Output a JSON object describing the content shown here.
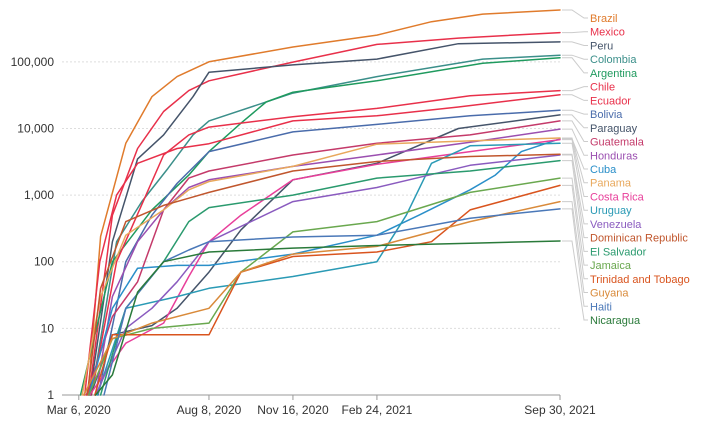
{
  "chart_data": {
    "type": "line",
    "title": "",
    "xlabel": "",
    "ylabel": "",
    "y_scale": "log",
    "ylim": [
      1,
      600000
    ],
    "xlim": [
      "2020-02-15",
      "2021-09-30"
    ],
    "grid": "horizontal dotted",
    "legend_placement": "right",
    "y_ticks": [
      {
        "value": 1,
        "label": "1"
      },
      {
        "value": 10,
        "label": "10"
      },
      {
        "value": 100,
        "label": "100"
      },
      {
        "value": 1000,
        "label": "1,000"
      },
      {
        "value": 10000,
        "label": "10,000"
      },
      {
        "value": 100000,
        "label": "100,000"
      }
    ],
    "x_ticks": [
      {
        "value": "2020-03-06",
        "label": "Mar 6, 2020"
      },
      {
        "value": "2020-08-08",
        "label": "Aug 8, 2020"
      },
      {
        "value": "2020-11-16",
        "label": "Nov 16, 2020"
      },
      {
        "value": "2021-02-24",
        "label": "Feb 24, 2021"
      },
      {
        "value": "2021-09-30",
        "label": "Sep 30, 2021"
      }
    ],
    "series": [
      {
        "name": "Brazil",
        "color": "#e07b2c",
        "points": [
          [
            "2020-03-17",
            1
          ],
          [
            "2020-04-01",
            240
          ],
          [
            "2020-05-01",
            6000
          ],
          [
            "2020-06-01",
            30000
          ],
          [
            "2020-07-01",
            60000
          ],
          [
            "2020-08-08",
            100000
          ],
          [
            "2020-11-16",
            167000
          ],
          [
            "2021-02-24",
            252000
          ],
          [
            "2021-04-30",
            400000
          ],
          [
            "2021-06-30",
            520000
          ],
          [
            "2021-09-30",
            600000
          ]
        ]
      },
      {
        "name": "Mexico",
        "color": "#e8304a",
        "points": [
          [
            "2020-03-18",
            1
          ],
          [
            "2020-04-15",
            500
          ],
          [
            "2020-05-15",
            5000
          ],
          [
            "2020-06-15",
            18000
          ],
          [
            "2020-07-15",
            37000
          ],
          [
            "2020-08-08",
            52000
          ],
          [
            "2020-11-16",
            99000
          ],
          [
            "2021-02-24",
            183000
          ],
          [
            "2021-06-01",
            227000
          ],
          [
            "2021-09-30",
            275000
          ]
        ]
      },
      {
        "name": "Peru",
        "color": "#45546a",
        "points": [
          [
            "2020-03-19",
            1
          ],
          [
            "2020-04-15",
            200
          ],
          [
            "2020-05-15",
            3500
          ],
          [
            "2020-06-15",
            8000
          ],
          [
            "2020-07-20",
            30000
          ],
          [
            "2020-08-08",
            70000
          ],
          [
            "2020-11-16",
            90000
          ],
          [
            "2021-02-24",
            110000
          ],
          [
            "2021-06-01",
            187000
          ],
          [
            "2021-09-30",
            199000
          ]
        ]
      },
      {
        "name": "Colombia",
        "color": "#3b8f8a",
        "points": [
          [
            "2020-03-21",
            1
          ],
          [
            "2020-04-20",
            200
          ],
          [
            "2020-05-20",
            800
          ],
          [
            "2020-06-20",
            2500
          ],
          [
            "2020-07-20",
            8000
          ],
          [
            "2020-08-08",
            13000
          ],
          [
            "2020-11-16",
            34000
          ],
          [
            "2021-02-24",
            60000
          ],
          [
            "2021-06-30",
            110000
          ],
          [
            "2021-09-30",
            126000
          ]
        ]
      },
      {
        "name": "Argentina",
        "color": "#1f9a5e",
        "points": [
          [
            "2020-03-08",
            1
          ],
          [
            "2020-04-15",
            100
          ],
          [
            "2020-06-01",
            600
          ],
          [
            "2020-07-15",
            2000
          ],
          [
            "2020-08-08",
            4500
          ],
          [
            "2020-09-15",
            12000
          ],
          [
            "2020-10-15",
            25000
          ],
          [
            "2020-11-16",
            35000
          ],
          [
            "2021-02-24",
            52000
          ],
          [
            "2021-06-30",
            95000
          ],
          [
            "2021-09-30",
            115000
          ]
        ]
      },
      {
        "name": "Chile",
        "color": "#e8304a",
        "points": [
          [
            "2020-03-21",
            1
          ],
          [
            "2020-04-20",
            100
          ],
          [
            "2020-05-25",
            1000
          ],
          [
            "2020-06-15",
            4000
          ],
          [
            "2020-07-15",
            8000
          ],
          [
            "2020-08-08",
            10500
          ],
          [
            "2020-11-16",
            15000
          ],
          [
            "2021-02-24",
            20000
          ],
          [
            "2021-06-15",
            31000
          ],
          [
            "2021-09-30",
            37000
          ]
        ]
      },
      {
        "name": "Ecuador",
        "color": "#e8304a",
        "points": [
          [
            "2020-03-13",
            1
          ],
          [
            "2020-03-31",
            100
          ],
          [
            "2020-04-20",
            1000
          ],
          [
            "2020-05-15",
            3000
          ],
          [
            "2020-07-01",
            5000
          ],
          [
            "2020-08-08",
            5900
          ],
          [
            "2020-11-16",
            13000
          ],
          [
            "2021-02-24",
            15500
          ],
          [
            "2021-06-01",
            21000
          ],
          [
            "2021-09-30",
            32000
          ]
        ]
      },
      {
        "name": "Bolivia",
        "color": "#4a6cab",
        "points": [
          [
            "2020-03-29",
            1
          ],
          [
            "2020-05-01",
            100
          ],
          [
            "2020-06-01",
            500
          ],
          [
            "2020-07-01",
            1500
          ],
          [
            "2020-08-08",
            4500
          ],
          [
            "2020-11-16",
            8900
          ],
          [
            "2021-02-24",
            11500
          ],
          [
            "2021-06-15",
            15500
          ],
          [
            "2021-09-30",
            18800
          ]
        ]
      },
      {
        "name": "Paraguay",
        "color": "#45546a",
        "points": [
          [
            "2020-03-20",
            1
          ],
          [
            "2020-04-15",
            8
          ],
          [
            "2020-06-01",
            11
          ],
          [
            "2020-07-01",
            20
          ],
          [
            "2020-08-08",
            70
          ],
          [
            "2020-09-15",
            300
          ],
          [
            "2020-11-16",
            1700
          ],
          [
            "2021-02-24",
            3000
          ],
          [
            "2021-06-01",
            10000
          ],
          [
            "2021-09-30",
            16000
          ]
        ]
      },
      {
        "name": "Guatemala",
        "color": "#c43a6a",
        "points": [
          [
            "2020-03-15",
            1
          ],
          [
            "2020-04-15",
            15
          ],
          [
            "2020-05-15",
            50
          ],
          [
            "2020-06-15",
            600
          ],
          [
            "2020-07-15",
            1800
          ],
          [
            "2020-08-08",
            2300
          ],
          [
            "2020-11-16",
            4000
          ],
          [
            "2021-02-24",
            6000
          ],
          [
            "2021-06-15",
            8000
          ],
          [
            "2021-09-30",
            13000
          ]
        ]
      },
      {
        "name": "Honduras",
        "color": "#9b4fb0",
        "points": [
          [
            "2020-03-26",
            1
          ],
          [
            "2020-04-15",
            30
          ],
          [
            "2020-05-15",
            200
          ],
          [
            "2020-06-15",
            600
          ],
          [
            "2020-07-15",
            1300
          ],
          [
            "2020-08-08",
            1700
          ],
          [
            "2020-11-16",
            2700
          ],
          [
            "2021-02-24",
            4000
          ],
          [
            "2021-06-15",
            6200
          ],
          [
            "2021-09-30",
            9800
          ]
        ]
      },
      {
        "name": "Cuba",
        "color": "#2a8fc9",
        "points": [
          [
            "2020-03-18",
            1
          ],
          [
            "2020-04-15",
            20
          ],
          [
            "2020-05-15",
            80
          ],
          [
            "2020-07-01",
            88
          ],
          [
            "2020-08-08",
            88
          ],
          [
            "2020-11-16",
            130
          ],
          [
            "2021-02-24",
            250
          ],
          [
            "2021-04-15",
            500
          ],
          [
            "2021-06-15",
            1200
          ],
          [
            "2021-07-15",
            2000
          ],
          [
            "2021-08-15",
            4500
          ],
          [
            "2021-09-30",
            7000
          ]
        ]
      },
      {
        "name": "Panama",
        "color": "#e8a85c",
        "points": [
          [
            "2020-03-10",
            1
          ],
          [
            "2020-04-01",
            30
          ],
          [
            "2020-05-01",
            250
          ],
          [
            "2020-06-15",
            600
          ],
          [
            "2020-07-15",
            1200
          ],
          [
            "2020-08-08",
            1600
          ],
          [
            "2020-11-16",
            2700
          ],
          [
            "2021-02-24",
            5800
          ],
          [
            "2021-06-15",
            6500
          ],
          [
            "2021-09-30",
            7200
          ]
        ]
      },
      {
        "name": "Costa Rica",
        "color": "#e83f9a",
        "points": [
          [
            "2020-03-19",
            1
          ],
          [
            "2020-05-01",
            6
          ],
          [
            "2020-06-15",
            12
          ],
          [
            "2020-07-15",
            60
          ],
          [
            "2020-08-08",
            200
          ],
          [
            "2020-09-15",
            500
          ],
          [
            "2020-11-16",
            1700
          ],
          [
            "2021-02-24",
            2900
          ],
          [
            "2021-06-15",
            4500
          ],
          [
            "2021-09-30",
            6800
          ]
        ]
      },
      {
        "name": "Uruguay",
        "color": "#2a9ab5",
        "points": [
          [
            "2020-03-28",
            1
          ],
          [
            "2020-05-01",
            20
          ],
          [
            "2020-07-01",
            30
          ],
          [
            "2020-08-08",
            40
          ],
          [
            "2020-11-16",
            60
          ],
          [
            "2021-02-24",
            100
          ],
          [
            "2021-03-31",
            500
          ],
          [
            "2021-04-30",
            3000
          ],
          [
            "2021-06-15",
            5500
          ],
          [
            "2021-09-30",
            6000
          ]
        ]
      },
      {
        "name": "Venezuela",
        "color": "#8a5bbf",
        "points": [
          [
            "2020-03-26",
            1
          ],
          [
            "2020-05-01",
            10
          ],
          [
            "2020-06-01",
            20
          ],
          [
            "2020-07-01",
            50
          ],
          [
            "2020-08-08",
            200
          ],
          [
            "2020-11-16",
            800
          ],
          [
            "2021-02-24",
            1300
          ],
          [
            "2021-06-15",
            2800
          ],
          [
            "2021-09-30",
            4000
          ]
        ]
      },
      {
        "name": "Dominican Republic",
        "color": "#c0562d",
        "points": [
          [
            "2020-03-16",
            1
          ],
          [
            "2020-04-01",
            40
          ],
          [
            "2020-05-01",
            400
          ],
          [
            "2020-06-15",
            700
          ],
          [
            "2020-07-15",
            900
          ],
          [
            "2020-08-08",
            1100
          ],
          [
            "2020-11-16",
            2300
          ],
          [
            "2021-02-24",
            3200
          ],
          [
            "2021-06-15",
            3800
          ],
          [
            "2021-09-30",
            4100
          ]
        ]
      },
      {
        "name": "El Salvador",
        "color": "#2a9a6e",
        "points": [
          [
            "2020-04-01",
            1
          ],
          [
            "2020-05-01",
            20
          ],
          [
            "2020-06-15",
            100
          ],
          [
            "2020-07-15",
            400
          ],
          [
            "2020-08-08",
            650
          ],
          [
            "2020-11-16",
            1000
          ],
          [
            "2021-02-24",
            1800
          ],
          [
            "2021-06-15",
            2300
          ],
          [
            "2021-09-30",
            3300
          ]
        ]
      },
      {
        "name": "Jamaica",
        "color": "#6aa84f",
        "points": [
          [
            "2020-03-18",
            1
          ],
          [
            "2020-04-15",
            7
          ],
          [
            "2020-06-01",
            10
          ],
          [
            "2020-08-08",
            12
          ],
          [
            "2020-09-15",
            70
          ],
          [
            "2020-11-16",
            280
          ],
          [
            "2021-02-24",
            400
          ],
          [
            "2021-06-15",
            1100
          ],
          [
            "2021-09-30",
            1800
          ]
        ]
      },
      {
        "name": "Trinidad and Tobago",
        "color": "#d9541e",
        "points": [
          [
            "2020-03-25",
            1
          ],
          [
            "2020-04-15",
            8
          ],
          [
            "2020-07-01",
            8
          ],
          [
            "2020-08-08",
            8
          ],
          [
            "2020-09-15",
            70
          ],
          [
            "2020-11-16",
            120
          ],
          [
            "2021-02-24",
            140
          ],
          [
            "2021-04-30",
            200
          ],
          [
            "2021-06-15",
            600
          ],
          [
            "2021-09-30",
            1400
          ]
        ]
      },
      {
        "name": "Guyana",
        "color": "#d98a3a",
        "points": [
          [
            "2020-03-12",
            1
          ],
          [
            "2020-04-15",
            7
          ],
          [
            "2020-06-01",
            12
          ],
          [
            "2020-08-08",
            20
          ],
          [
            "2020-09-15",
            70
          ],
          [
            "2020-11-16",
            130
          ],
          [
            "2021-02-24",
            170
          ],
          [
            "2021-06-15",
            400
          ],
          [
            "2021-09-30",
            800
          ]
        ]
      },
      {
        "name": "Haiti",
        "color": "#4a78b8",
        "points": [
          [
            "2020-04-05",
            1
          ],
          [
            "2020-05-01",
            20
          ],
          [
            "2020-06-15",
            100
          ],
          [
            "2020-07-15",
            150
          ],
          [
            "2020-08-08",
            200
          ],
          [
            "2020-11-16",
            235
          ],
          [
            "2021-02-24",
            250
          ],
          [
            "2021-06-15",
            450
          ],
          [
            "2021-09-30",
            620
          ]
        ]
      },
      {
        "name": "Nicaragua",
        "color": "#2a7a3a",
        "points": [
          [
            "2020-03-26",
            1
          ],
          [
            "2020-04-15",
            2
          ],
          [
            "2020-05-15",
            35
          ],
          [
            "2020-06-15",
            100
          ],
          [
            "2020-08-08",
            140
          ],
          [
            "2020-11-16",
            160
          ],
          [
            "2021-02-24",
            175
          ],
          [
            "2021-06-15",
            190
          ],
          [
            "2021-09-30",
            205
          ]
        ]
      }
    ]
  }
}
